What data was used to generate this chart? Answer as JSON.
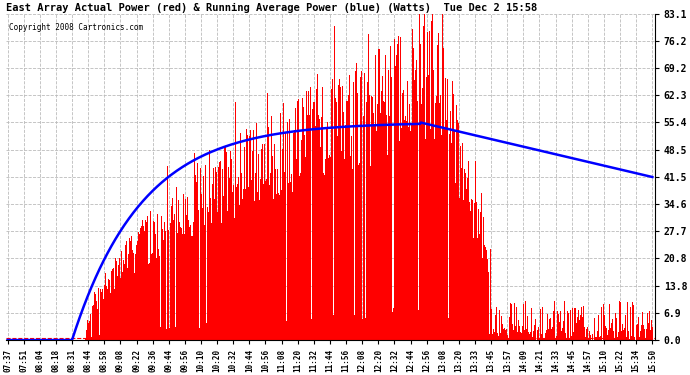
{
  "title": "East Array Actual Power (red) & Running Average Power (blue) (Watts)  Tue Dec 2 15:58",
  "copyright": "Copyright 2008 Cartronics.com",
  "yticks": [
    0.0,
    6.9,
    13.8,
    20.8,
    27.7,
    34.6,
    41.5,
    48.5,
    55.4,
    62.3,
    69.2,
    76.2,
    83.1
  ],
  "ymax": 83.1,
  "ymin": 0.0,
  "bar_color": "#ff0000",
  "avg_color": "#0000ff",
  "background_color": "#ffffff",
  "grid_color": "#bbbbbb",
  "xtick_labels": [
    "07:37",
    "07:51",
    "08:04",
    "08:18",
    "08:31",
    "08:44",
    "08:58",
    "09:08",
    "09:22",
    "09:36",
    "09:44",
    "09:56",
    "10:10",
    "10:20",
    "10:32",
    "10:44",
    "10:56",
    "11:08",
    "11:20",
    "11:32",
    "11:44",
    "11:56",
    "12:08",
    "12:20",
    "12:32",
    "12:44",
    "12:56",
    "13:08",
    "13:20",
    "13:33",
    "13:45",
    "13:57",
    "14:09",
    "14:21",
    "14:33",
    "14:45",
    "14:57",
    "15:10",
    "15:22",
    "15:34",
    "15:50"
  ],
  "n_points": 820,
  "figsize": [
    6.9,
    3.75
  ],
  "dpi": 100
}
